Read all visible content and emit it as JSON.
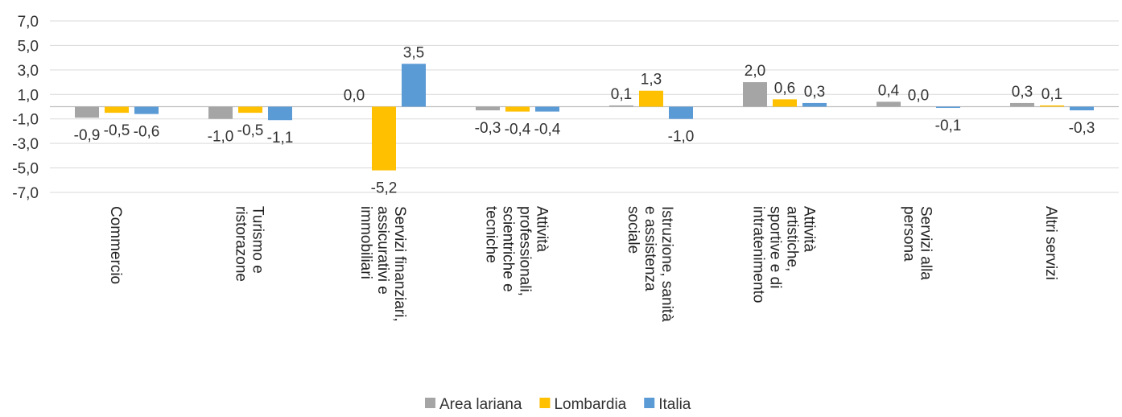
{
  "chart_data": {
    "type": "bar",
    "categories": [
      [
        "Commercio"
      ],
      [
        "Turismo e",
        "ristorazone"
      ],
      [
        "Servizi finanziari,",
        "assicurativi e",
        "immobiliari"
      ],
      [
        "Attività",
        "professionali,",
        "scientriche e",
        "tecniche"
      ],
      [
        "Istruzione, sanità",
        "e assistenza",
        "sociale"
      ],
      [
        "Attività",
        "artistiche,",
        "sportive e di",
        "intratenimento"
      ],
      [
        "Servizi alla",
        "persona"
      ],
      [
        "Altri servizi"
      ]
    ],
    "series": [
      {
        "name": "Area lariana",
        "color": "#A5A5A5",
        "values": [
          -0.9,
          -1.0,
          0.0,
          -0.3,
          0.1,
          2.0,
          0.4,
          0.3
        ]
      },
      {
        "name": "Lombardia",
        "color": "#FFC000",
        "values": [
          -0.5,
          -0.5,
          -5.2,
          -0.4,
          1.3,
          0.6,
          0.0,
          0.1
        ]
      },
      {
        "name": "Italia",
        "color": "#5B9BD5",
        "values": [
          -0.6,
          -1.1,
          3.5,
          -0.4,
          -1.0,
          0.3,
          -0.1,
          -0.3
        ]
      }
    ],
    "data_labels": [
      [
        "-0,9",
        "-1,0",
        "0,0",
        "-0,3",
        "0,1",
        "2,0",
        "0,4",
        "0,3"
      ],
      [
        "-0,5",
        "-0,5",
        "-5,2",
        "-0,4",
        "1,3",
        "0,6",
        "0,0",
        "0,1"
      ],
      [
        "-0,6",
        "-1,1",
        "3,5",
        "-0,4",
        "-1,0",
        "0,3",
        "-0,1",
        "-0,3"
      ]
    ],
    "yticks": [
      7,
      5,
      3,
      1,
      -1,
      -3,
      -5,
      -7
    ],
    "ytick_labels": [
      "7,0",
      "5,0",
      "3,0",
      "1,0",
      "-1,0",
      "-3,0",
      "-5,0",
      "-7,0"
    ],
    "ylim": [
      -7,
      7
    ],
    "grid": true,
    "legend_position": "bottom",
    "title": "",
    "xlabel": "",
    "ylabel": ""
  }
}
